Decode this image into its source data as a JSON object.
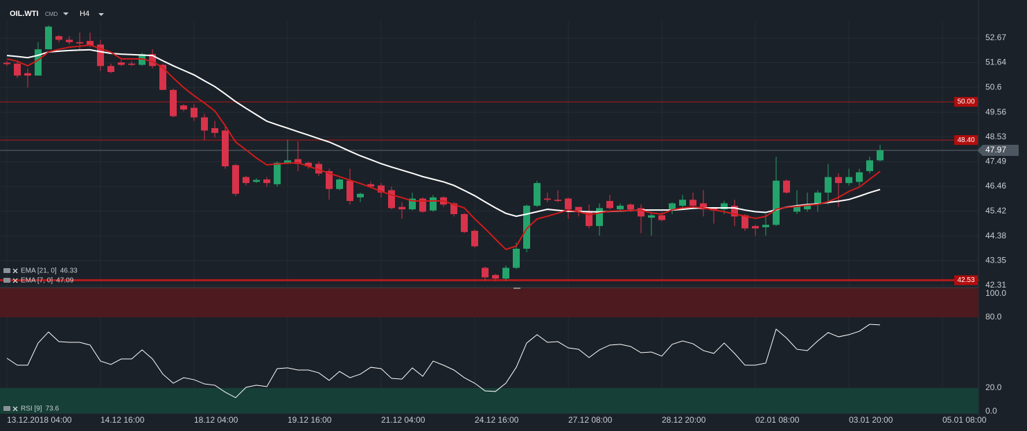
{
  "header": {
    "symbol": "OIL.WTI",
    "market": "CMD",
    "timeframe": "H4"
  },
  "chart_data": [
    {
      "type": "candlestick",
      "up_color": "#24a46c",
      "down_color": "#d8334a",
      "open": [
        51.64,
        51.6,
        51.2,
        51.1,
        52.2,
        52.75,
        52.6,
        52.5,
        52.55,
        52.4,
        51.5,
        51.65,
        51.6,
        51.55,
        52.0,
        51.55,
        50.5,
        49.85,
        49.75,
        49.35,
        48.9,
        48.8,
        47.35,
        46.85,
        46.65,
        46.75,
        46.55,
        47.45,
        47.6,
        47.45,
        47.4,
        47.1,
        46.35,
        46.7,
        46.0,
        46.55,
        46.5,
        46.3,
        45.6,
        45.5,
        45.95,
        45.45,
        46.0,
        45.75,
        45.3,
        44.6,
        43.05,
        42.75,
        42.6,
        43.05,
        43.85,
        45.65,
        45.95,
        45.9,
        45.95,
        45.6,
        45.4,
        44.8,
        45.85,
        45.5,
        45.7,
        45.55,
        45.15,
        45.25,
        45.45,
        45.65,
        45.9,
        45.75,
        45.55,
        45.5,
        45.65,
        45.25,
        44.8,
        44.75,
        44.85,
        46.7,
        45.4,
        45.5,
        45.7,
        46.2,
        46.85,
        46.6,
        46.65,
        47.1,
        47.55
      ],
      "high": [
        51.7,
        51.7,
        51.4,
        52.5,
        53.2,
        52.8,
        52.75,
        52.9,
        52.9,
        52.6,
        51.6,
        51.75,
        51.7,
        52.05,
        52.2,
        51.6,
        50.55,
        49.9,
        49.9,
        49.5,
        49.2,
        49.0,
        47.4,
        46.9,
        46.8,
        46.85,
        47.5,
        48.4,
        48.35,
        47.5,
        47.5,
        47.2,
        46.8,
        47.2,
        46.2,
        46.65,
        46.6,
        46.45,
        45.8,
        46.2,
        46.0,
        46.1,
        46.05,
        45.8,
        45.35,
        44.65,
        43.1,
        42.8,
        43.15,
        44.1,
        45.7,
        46.7,
        46.2,
        46.3,
        46.0,
        45.6,
        45.7,
        45.75,
        46.1,
        45.75,
        45.75,
        45.7,
        45.4,
        45.4,
        45.8,
        46.1,
        46.2,
        46.3,
        45.6,
        45.85,
        45.9,
        45.3,
        44.85,
        45.3,
        47.7,
        46.75,
        46.3,
        46.2,
        46.3,
        47.4,
        47.0,
        47.2,
        47.2,
        47.7,
        48.2
      ],
      "low": [
        51.5,
        51.0,
        50.6,
        51.1,
        52.2,
        52.5,
        52.4,
        52.2,
        52.3,
        51.3,
        51.2,
        51.5,
        51.5,
        51.5,
        51.4,
        50.5,
        49.35,
        49.6,
        49.2,
        48.4,
        48.5,
        47.2,
        46.05,
        46.5,
        46.6,
        46.45,
        46.45,
        47.4,
        47.1,
        47.2,
        46.9,
        45.9,
        46.3,
        45.7,
        45.8,
        46.4,
        46.0,
        45.5,
        45.1,
        45.45,
        45.35,
        45.4,
        45.6,
        45.2,
        44.5,
        43.9,
        42.5,
        42.5,
        42.5,
        43.0,
        43.7,
        45.6,
        45.8,
        45.8,
        45.1,
        45.2,
        44.7,
        44.4,
        45.5,
        45.4,
        45.4,
        44.5,
        44.4,
        45.0,
        45.3,
        45.5,
        45.6,
        45.2,
        44.9,
        45.3,
        44.8,
        44.6,
        44.4,
        44.4,
        44.8,
        46.15,
        45.3,
        45.4,
        45.4,
        45.7,
        45.6,
        46.5,
        46.5,
        47.0,
        47.5
      ],
      "close": [
        51.58,
        51.1,
        51.1,
        52.2,
        53.15,
        52.6,
        52.5,
        52.45,
        52.35,
        51.5,
        51.25,
        51.55,
        51.55,
        52.0,
        51.5,
        50.5,
        49.4,
        49.68,
        49.35,
        48.8,
        48.7,
        47.3,
        46.15,
        46.6,
        46.73,
        46.6,
        47.45,
        47.55,
        47.4,
        47.3,
        47.0,
        46.35,
        46.75,
        45.85,
        46.15,
        46.45,
        46.2,
        45.55,
        45.5,
        45.95,
        45.4,
        46.0,
        45.7,
        45.3,
        44.55,
        43.95,
        42.65,
        42.6,
        43.05,
        43.85,
        45.65,
        46.6,
        45.9,
        45.85,
        45.5,
        45.45,
        44.8,
        45.55,
        45.55,
        45.65,
        45.5,
        45.2,
        45.25,
        45.05,
        45.75,
        45.9,
        45.65,
        45.5,
        45.45,
        45.75,
        45.2,
        44.7,
        44.7,
        44.85,
        46.7,
        46.2,
        45.6,
        45.7,
        46.2,
        46.85,
        46.6,
        46.85,
        47.05,
        47.55,
        47.97
      ],
      "series": [
        {
          "name": "EMA [21, 0]",
          "color": "#ffffff",
          "values": [
            51.94,
            51.9,
            51.85,
            51.95,
            52.09,
            52.12,
            52.15,
            52.17,
            52.18,
            52.1,
            52.03,
            52.0,
            51.98,
            51.96,
            51.94,
            51.72,
            51.51,
            51.32,
            51.13,
            50.88,
            50.64,
            50.33,
            50.01,
            49.73,
            49.46,
            49.19,
            49.04,
            48.9,
            48.75,
            48.61,
            48.46,
            48.32,
            48.13,
            47.93,
            47.74,
            47.58,
            47.41,
            47.27,
            47.14,
            47.01,
            46.87,
            46.76,
            46.65,
            46.5,
            46.29,
            46.07,
            45.81,
            45.56,
            45.33,
            45.21,
            45.3,
            45.4,
            45.5,
            45.46,
            45.42,
            45.41,
            45.4,
            45.39,
            45.41,
            45.43,
            45.45,
            45.47,
            45.47,
            45.47,
            45.47,
            45.5,
            45.54,
            45.56,
            45.56,
            45.56,
            45.56,
            45.47,
            45.4,
            45.37,
            45.48,
            45.59,
            45.65,
            45.7,
            45.73,
            45.79,
            45.84,
            45.91,
            46.05,
            46.2,
            46.33
          ]
        },
        {
          "name": "EMA [7, 0]",
          "color": "#d01c1c",
          "values": [
            51.8,
            51.7,
            51.51,
            51.75,
            52.09,
            52.2,
            52.29,
            52.33,
            52.38,
            52.23,
            52.08,
            51.8,
            51.8,
            51.8,
            51.69,
            51.43,
            51.0,
            50.6,
            50.26,
            49.95,
            49.62,
            49.0,
            48.32,
            47.99,
            47.65,
            47.36,
            47.4,
            47.43,
            47.45,
            47.3,
            47.16,
            47.01,
            46.87,
            46.72,
            46.58,
            46.42,
            46.25,
            46.1,
            45.99,
            45.85,
            45.85,
            45.85,
            45.85,
            45.7,
            45.56,
            45.1,
            44.69,
            44.25,
            43.82,
            43.96,
            44.69,
            45.1,
            45.21,
            45.34,
            45.47,
            45.4,
            45.27,
            45.35,
            45.42,
            45.44,
            45.45,
            45.47,
            45.35,
            45.3,
            45.48,
            45.56,
            45.6,
            45.56,
            45.48,
            45.4,
            45.3,
            45.22,
            45.12,
            45.2,
            45.5,
            45.58,
            45.62,
            45.67,
            45.71,
            45.82,
            46.0,
            46.25,
            46.43,
            46.76,
            47.09
          ]
        }
      ],
      "levels": [
        {
          "value": 50,
          "label": "50.00"
        },
        {
          "value": 48.4,
          "label": "48.40"
        },
        42.53
      ],
      "last_price": 47.97,
      "ylim": [
        42.31,
        53.83
      ],
      "yticks": [
        52.67,
        51.64,
        50.6,
        49.56,
        48.53,
        47.49,
        46.46,
        45.42,
        44.38,
        43.35,
        42.31
      ],
      "xticks": [
        "13.12.2018 04:00",
        "14.12 16:00",
        "18.12 04:00",
        "19.12 16:00",
        "21.12 04:00",
        "24.12 16:00",
        "27.12 08:00",
        "28.12 20:00",
        "02.01 08:00",
        "03.01 20:00",
        "05.01 08:00"
      ]
    },
    {
      "type": "line",
      "series": [
        {
          "name": "RSI [9]",
          "color": "#ffffff",
          "values": [
            45.3,
            39.4,
            39.4,
            58.2,
            67.6,
            59.4,
            58.8,
            58.8,
            56.5,
            42.9,
            40.0,
            44.7,
            44.7,
            52.4,
            44.7,
            31.8,
            24.1,
            28.8,
            27.1,
            23.5,
            22.4,
            16.5,
            11.8,
            20.6,
            22.4,
            21.2,
            36.5,
            37.1,
            35.3,
            35.3,
            32.9,
            26.5,
            34.1,
            28.8,
            31.8,
            37.6,
            36.5,
            28.2,
            27.6,
            37.1,
            30.0,
            42.9,
            39.4,
            35.3,
            28.8,
            24.1,
            17.6,
            17.1,
            24.1,
            37.6,
            58.2,
            65.3,
            58.8,
            59.4,
            54.1,
            52.9,
            45.9,
            52.4,
            56.5,
            57.1,
            55.3,
            50.0,
            50.6,
            47.1,
            57.1,
            60.0,
            57.6,
            51.8,
            49.4,
            58.2,
            49.4,
            39.4,
            39.4,
            41.2,
            70.0,
            62.4,
            52.9,
            51.8,
            60.0,
            67.1,
            63.5,
            65.3,
            68.2,
            74.1,
            73.6
          ]
        }
      ],
      "ylim": [
        0,
        100
      ],
      "yticks": [
        {
          "value": 100,
          "label": "100.0"
        },
        {
          "value": 80,
          "label": "80.0"
        },
        {
          "value": 20,
          "label": "20.0"
        },
        {
          "value": 0,
          "label": "0.0"
        }
      ]
    }
  ]
}
